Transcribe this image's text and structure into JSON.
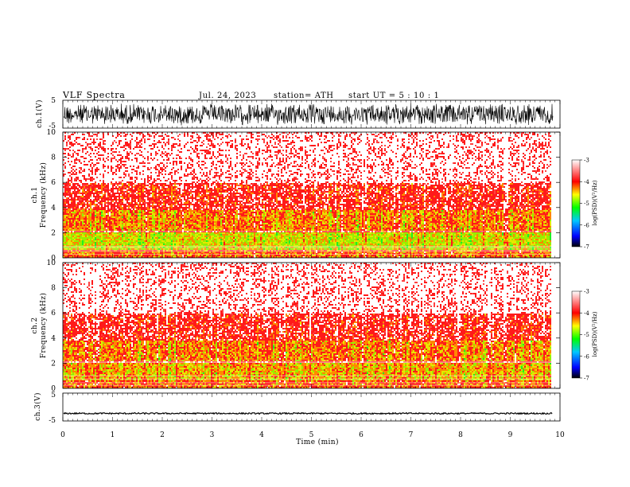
{
  "header": {
    "title": "VLF Spectra",
    "date": "Jul. 24, 2023",
    "station": "station= ATH",
    "start_ut": "start UT =  5 : 10 : 1"
  },
  "colors": {
    "white": "#ffffff",
    "red": "#ff1a1a",
    "yellow": "#e6e600",
    "green": "#33ee33",
    "black_wave": "#000000"
  },
  "chart_data": [
    {
      "type": "line",
      "id": "ch1-waveform",
      "ylabel": "ch.1(V)",
      "ylim": [
        -5,
        5
      ],
      "yticks": [
        "5",
        "-5"
      ],
      "xlim": [
        0,
        10
      ],
      "description_note": ""
    },
    {
      "type": "heatmap",
      "id": "ch1-spectrogram",
      "ylabel_line1": "ch.1",
      "ylabel_line2": "Frequency (kHz)",
      "ylim": [
        0,
        10
      ],
      "yticks": [
        "0",
        "2",
        "4",
        "6",
        "8",
        "10"
      ],
      "xlim": [
        0,
        10
      ],
      "colorbar": {
        "label": "log(PSD)(V²/Hz)",
        "range": [
          -7,
          -3
        ],
        "ticks": [
          "-3",
          "-4",
          "-5",
          "-6",
          "-7"
        ]
      }
    },
    {
      "type": "heatmap",
      "id": "ch2-spectrogram",
      "ylabel_line1": "ch.2",
      "ylabel_line2": "Frequency (kHz)",
      "ylim": [
        0,
        10
      ],
      "yticks": [
        "0",
        "2",
        "4",
        "6",
        "8",
        "10"
      ],
      "xlim": [
        0,
        10
      ],
      "colorbar": {
        "label": "log(PSD)(V²/Hz)",
        "range": [
          -7,
          -3
        ],
        "ticks": [
          "-3",
          "-4",
          "-5",
          "-6",
          "-7"
        ]
      }
    },
    {
      "type": "line",
      "id": "ch3-waveform",
      "ylabel": "ch.3(V)",
      "ylim": [
        -5,
        5
      ],
      "yticks": [
        "5",
        "-5"
      ],
      "xlim": [
        0,
        10
      ],
      "xlabel": "Time (min)",
      "xticks": [
        "0",
        "1",
        "2",
        "3",
        "4",
        "5",
        "6",
        "7",
        "8",
        "9",
        "10"
      ]
    }
  ]
}
